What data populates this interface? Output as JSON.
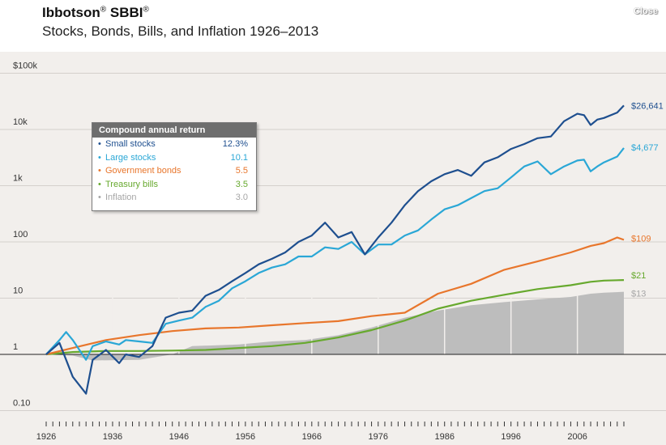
{
  "header": {
    "title": "Ibbotson",
    "title_reg1": "®",
    "title_2": " SBBI",
    "title_reg2": "®",
    "subtitle": "Stocks, Bonds, Bills, and Inflation 1926–2013",
    "close_label": "Close"
  },
  "legend": {
    "heading": "Compound annual return",
    "rows": [
      {
        "name": "Small stocks",
        "value": "12.3%",
        "color": "#1e4f8f"
      },
      {
        "name": "Large stocks",
        "value": "10.1",
        "color": "#2aa7d6"
      },
      {
        "name": "Government bonds",
        "value": "5.5",
        "color": "#e8762c"
      },
      {
        "name": "Treasury bills",
        "value": "3.5",
        "color": "#67a92e"
      },
      {
        "name": "Inflation",
        "value": "3.0",
        "color": "#a6a6a6"
      }
    ]
  },
  "chart_data": {
    "type": "line",
    "yscale": "log",
    "ylim": [
      0.1,
      100000
    ],
    "xlim": [
      1926,
      2013
    ],
    "ytick_labels": [
      "$100k",
      "10k",
      "1k",
      "100",
      "10",
      "1",
      "0.10"
    ],
    "ytick_values": [
      100000,
      10000,
      1000,
      100,
      10,
      1,
      0.1
    ],
    "xtick_labels": [
      "1926",
      "1936",
      "1946",
      "1956",
      "1966",
      "1976",
      "1986",
      "1996",
      "2006"
    ],
    "series": [
      {
        "name": "Small stocks",
        "color": "#1e4f8f",
        "end_label": "$26,641",
        "x": [
          1926,
          1928,
          1929,
          1930,
          1932,
          1933,
          1935,
          1937,
          1938,
          1940,
          1942,
          1944,
          1946,
          1948,
          1950,
          1952,
          1954,
          1956,
          1958,
          1960,
          1962,
          1964,
          1966,
          1968,
          1970,
          1972,
          1974,
          1976,
          1978,
          1980,
          1982,
          1984,
          1986,
          1988,
          1990,
          1992,
          1994,
          1996,
          1998,
          2000,
          2002,
          2004,
          2006,
          2007,
          2008,
          2009,
          2010,
          2012,
          2013
        ],
        "y": [
          1,
          1.6,
          0.8,
          0.4,
          0.2,
          0.8,
          1.2,
          0.7,
          1.0,
          0.9,
          1.4,
          4.5,
          5.5,
          6.0,
          11,
          14,
          20,
          28,
          40,
          50,
          65,
          100,
          130,
          220,
          120,
          150,
          60,
          120,
          220,
          450,
          800,
          1200,
          1600,
          1900,
          1500,
          2600,
          3200,
          4500,
          5500,
          7000,
          7500,
          14000,
          19000,
          18000,
          12000,
          15000,
          16000,
          20000,
          26641
        ]
      },
      {
        "name": "Large stocks",
        "color": "#2aa7d6",
        "end_label": "$4,677",
        "x": [
          1926,
          1928,
          1929,
          1930,
          1932,
          1933,
          1935,
          1937,
          1938,
          1940,
          1942,
          1944,
          1946,
          1948,
          1950,
          1952,
          1954,
          1956,
          1958,
          1960,
          1962,
          1964,
          1966,
          1968,
          1970,
          1972,
          1974,
          1976,
          1978,
          1980,
          1982,
          1984,
          1986,
          1988,
          1990,
          1992,
          1994,
          1996,
          1998,
          2000,
          2002,
          2004,
          2006,
          2007,
          2008,
          2009,
          2010,
          2012,
          2013
        ],
        "y": [
          1,
          1.8,
          2.5,
          1.8,
          0.8,
          1.4,
          1.7,
          1.5,
          1.8,
          1.7,
          1.6,
          3.5,
          4.0,
          4.5,
          7.0,
          9.0,
          15,
          20,
          28,
          35,
          40,
          55,
          55,
          80,
          75,
          100,
          60,
          90,
          90,
          130,
          160,
          250,
          380,
          450,
          600,
          800,
          900,
          1400,
          2200,
          2700,
          1600,
          2200,
          2800,
          2900,
          1800,
          2200,
          2600,
          3300,
          4677
        ]
      },
      {
        "name": "Government bonds",
        "color": "#e8762c",
        "end_label": "$109",
        "x": [
          1926,
          1930,
          1935,
          1940,
          1945,
          1950,
          1955,
          1960,
          1965,
          1970,
          1975,
          1980,
          1985,
          1990,
          1995,
          2000,
          2005,
          2008,
          2010,
          2012,
          2013
        ],
        "y": [
          1,
          1.3,
          1.8,
          2.2,
          2.6,
          2.9,
          3.0,
          3.3,
          3.6,
          3.9,
          4.8,
          5.5,
          12,
          18,
          32,
          45,
          65,
          85,
          95,
          120,
          109
        ]
      },
      {
        "name": "Treasury bills",
        "color": "#67a92e",
        "end_label": "$21",
        "x": [
          1926,
          1930,
          1935,
          1940,
          1945,
          1950,
          1955,
          1960,
          1965,
          1970,
          1975,
          1980,
          1985,
          1990,
          1995,
          2000,
          2005,
          2008,
          2010,
          2013
        ],
        "y": [
          1,
          1.1,
          1.15,
          1.15,
          1.17,
          1.2,
          1.3,
          1.4,
          1.6,
          2.0,
          2.7,
          4.0,
          6.5,
          9.0,
          11.5,
          14.5,
          17,
          19.5,
          20.5,
          21
        ]
      },
      {
        "name": "Inflation",
        "color": "#a6a6a6",
        "end_label": "$13",
        "x": [
          1926,
          1930,
          1933,
          1940,
          1945,
          1948,
          1955,
          1960,
          1965,
          1970,
          1975,
          1980,
          1985,
          1990,
          1995,
          2000,
          2005,
          2008,
          2010,
          2013
        ],
        "y": [
          1,
          0.95,
          0.78,
          0.8,
          1.0,
          1.4,
          1.5,
          1.7,
          1.8,
          2.2,
          3.0,
          4.5,
          6.0,
          7.5,
          8.5,
          9.5,
          10.5,
          12,
          12.5,
          13
        ]
      }
    ]
  }
}
